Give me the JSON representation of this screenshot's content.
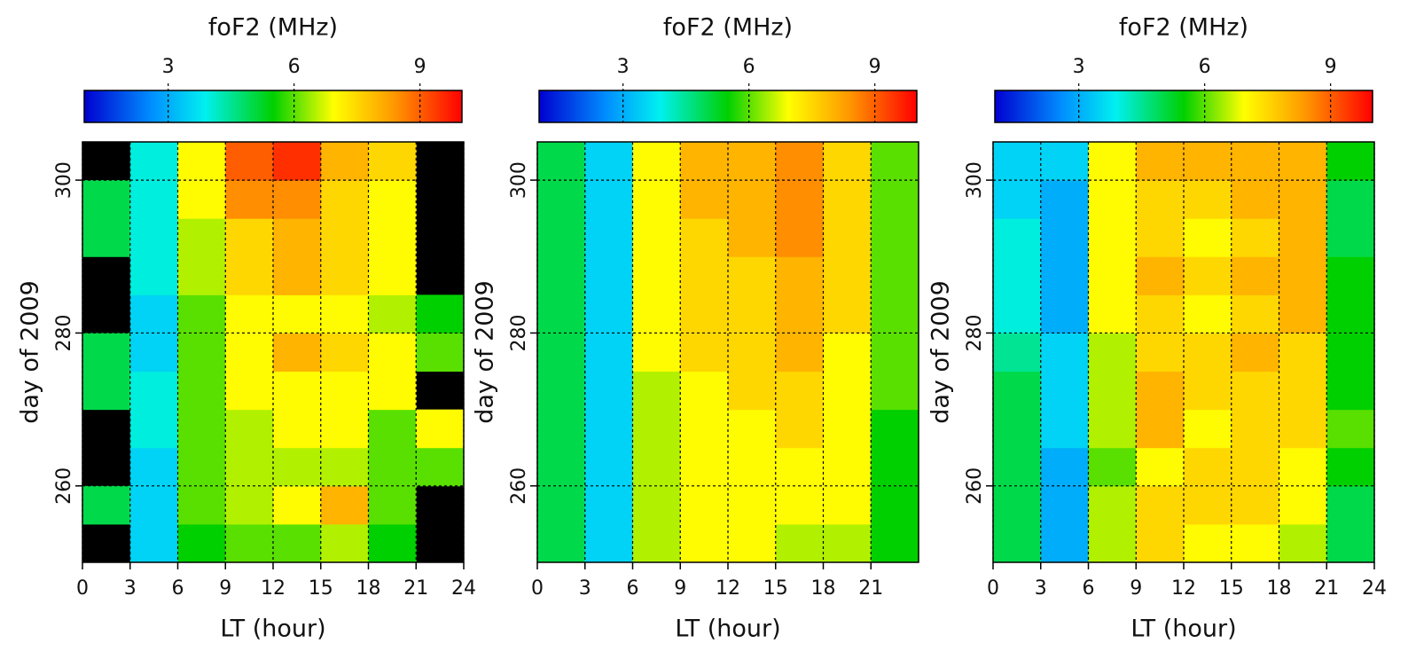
{
  "chart_data": [
    {
      "type": "heatmap",
      "title": "foF2 (MHz)",
      "x_label": "LT (hour)",
      "y_label": "day of 2009",
      "x_bins": [
        0,
        3,
        6,
        9,
        12,
        15,
        18,
        21,
        24
      ],
      "y_bins": [
        250,
        255,
        260,
        265,
        270,
        275,
        280,
        285,
        290,
        295,
        300,
        305
      ],
      "values": [
        [
          null,
          3.5,
          5.5,
          6,
          6,
          6.5,
          5.5,
          null
        ],
        [
          5,
          3.5,
          6,
          6.5,
          7,
          8,
          6,
          null
        ],
        [
          null,
          3.5,
          6,
          6.5,
          6.5,
          6.5,
          6,
          6
        ],
        [
          null,
          4,
          6,
          6.5,
          7,
          7,
          6,
          7
        ],
        [
          5,
          4,
          6,
          7,
          7,
          7,
          7,
          null
        ],
        [
          5,
          3.5,
          6,
          7,
          8,
          7.5,
          7,
          6
        ],
        [
          null,
          3.5,
          6,
          7,
          7,
          7,
          6.5,
          5.5
        ],
        [
          null,
          4,
          6.5,
          7.5,
          8,
          7.5,
          7,
          null
        ],
        [
          5,
          4,
          6.5,
          7.5,
          8,
          7.5,
          7,
          null
        ],
        [
          5,
          4,
          7,
          8.5,
          8.5,
          7.5,
          7,
          null
        ],
        [
          null,
          4,
          7,
          9,
          9.5,
          8,
          7.5,
          null
        ]
      ],
      "xlim": [
        0,
        24
      ],
      "xticks": [
        0,
        3,
        6,
        9,
        12,
        15,
        18,
        21,
        24
      ],
      "ylim": [
        250,
        305
      ],
      "yticks": [
        260,
        280,
        300
      ],
      "zlim": [
        1,
        10
      ],
      "zticks": [
        3,
        6,
        9
      ],
      "grid": true
    },
    {
      "type": "heatmap",
      "title": "foF2 (MHz)",
      "x_label": "LT (hour)",
      "y_label": "day of 2009",
      "x_bins": [
        0,
        3,
        6,
        9,
        12,
        15,
        18,
        21,
        24
      ],
      "y_bins": [
        250,
        255,
        260,
        265,
        270,
        275,
        280,
        285,
        290,
        295,
        300,
        305
      ],
      "values": [
        [
          5,
          3.5,
          6.5,
          7,
          7,
          6.5,
          6.5,
          5.5
        ],
        [
          5,
          3.5,
          6.5,
          7,
          7,
          7,
          7,
          5.5
        ],
        [
          5,
          3.5,
          6.5,
          7,
          7,
          7,
          7,
          5.5
        ],
        [
          5,
          3.5,
          6.5,
          7,
          7,
          7.5,
          7,
          5.5
        ],
        [
          5,
          3.5,
          6.5,
          7,
          7.5,
          7.5,
          7,
          6
        ],
        [
          5,
          3.5,
          7,
          7.5,
          7.5,
          8,
          7,
          6
        ],
        [
          5,
          3.5,
          7,
          7.5,
          7.5,
          8,
          7.5,
          6
        ],
        [
          5,
          3.5,
          7,
          7.5,
          7.5,
          8,
          7.5,
          6
        ],
        [
          5,
          3.5,
          7,
          7.5,
          8,
          8.5,
          7.5,
          6
        ],
        [
          5,
          3.5,
          7,
          8,
          8,
          8.5,
          7.5,
          6
        ],
        [
          5,
          3.5,
          7,
          8,
          8,
          8.5,
          7.5,
          6
        ]
      ],
      "xlim": [
        0,
        24
      ],
      "xticks": [
        0,
        3,
        6,
        9,
        12,
        15,
        18,
        21
      ],
      "ylim": [
        250,
        305
      ],
      "yticks": [
        260,
        280,
        300
      ],
      "zlim": [
        1,
        10
      ],
      "zticks": [
        3,
        6,
        9
      ],
      "grid": true
    },
    {
      "type": "heatmap",
      "title": "foF2 (MHz)",
      "x_label": "LT (hour)",
      "y_label": "day of 2009",
      "x_bins": [
        0,
        3,
        6,
        9,
        12,
        15,
        18,
        21,
        24
      ],
      "y_bins": [
        250,
        255,
        260,
        265,
        270,
        275,
        280,
        285,
        290,
        295,
        300,
        305
      ],
      "values": [
        [
          5,
          3,
          6.5,
          7.5,
          7,
          7,
          6.5,
          5
        ],
        [
          5,
          3,
          6.5,
          7.5,
          7.5,
          7.5,
          7,
          5
        ],
        [
          5,
          3,
          6,
          7,
          7.5,
          7.5,
          7,
          5.5
        ],
        [
          5,
          3.5,
          6.5,
          8,
          7,
          7.5,
          7.5,
          6
        ],
        [
          5,
          3.5,
          6.5,
          8,
          7.5,
          7.5,
          7.5,
          5.5
        ],
        [
          4.5,
          3.5,
          6.5,
          7.5,
          7.5,
          8,
          7.5,
          5.5
        ],
        [
          4,
          3,
          7,
          7.5,
          7,
          7.5,
          8,
          5.5
        ],
        [
          4,
          3,
          7,
          8,
          7.5,
          8,
          8,
          5.5
        ],
        [
          4,
          3,
          7,
          7.5,
          7,
          7.5,
          8,
          5
        ],
        [
          3.5,
          3,
          7,
          7.5,
          7.5,
          8,
          8,
          5
        ],
        [
          3.5,
          3.5,
          7,
          8,
          8,
          8,
          8,
          5.5
        ]
      ],
      "xlim": [
        0,
        24
      ],
      "xticks": [
        0,
        3,
        6,
        9,
        12,
        15,
        18,
        21,
        24
      ],
      "ylim": [
        250,
        305
      ],
      "yticks": [
        260,
        280,
        300
      ],
      "zlim": [
        1,
        10
      ],
      "zticks": [
        3,
        6,
        9
      ],
      "grid": true
    }
  ]
}
